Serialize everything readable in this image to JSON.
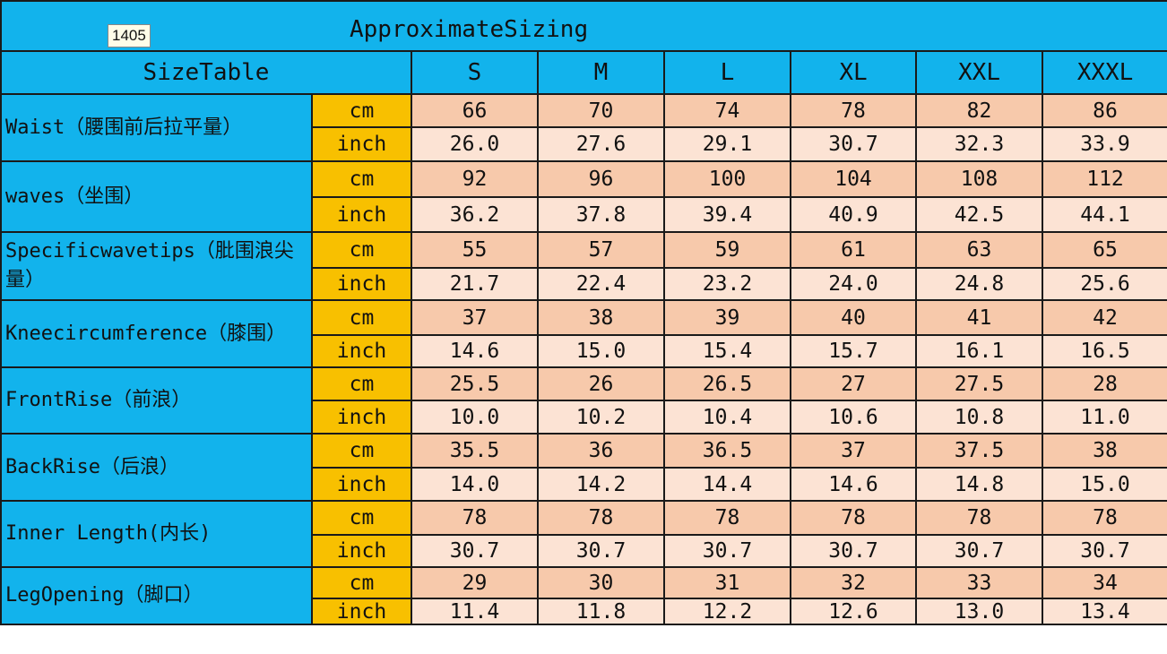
{
  "badge": "1405",
  "title": "ApproximateSizing",
  "header": {
    "first": "SizeTable",
    "sizes": [
      "S",
      "M",
      "L",
      "XL",
      "XXL",
      "XXXL"
    ]
  },
  "colors": {
    "header_blue": "#12b3ec",
    "unit_yellow": "#f8c000",
    "cm_row": "#f7c9ab",
    "inch_row": "#fce3d4"
  },
  "units": {
    "cm": "cm",
    "inch": "inch"
  },
  "rows": [
    {
      "label": "Waist（腰围前后拉平量）",
      "cm": [
        "66",
        "70",
        "74",
        "78",
        "82",
        "86"
      ],
      "inch": [
        "26.0",
        "27.6",
        "29.1",
        "30.7",
        "32.3",
        "33.9"
      ]
    },
    {
      "label": "waves（坐围）",
      "cm": [
        "92",
        "96",
        "100",
        "104",
        "108",
        "112"
      ],
      "inch": [
        "36.2",
        "37.8",
        "39.4",
        "40.9",
        "42.5",
        "44.1"
      ]
    },
    {
      "label": "Specificwavetips（肶围浪尖量）",
      "cm": [
        "55",
        "57",
        "59",
        "61",
        "63",
        "65"
      ],
      "inch": [
        "21.7",
        "22.4",
        "23.2",
        "24.0",
        "24.8",
        "25.6"
      ]
    },
    {
      "label": "Kneecircumference（膝围）",
      "cm": [
        "37",
        "38",
        "39",
        "40",
        "41",
        "42"
      ],
      "inch": [
        "14.6",
        "15.0",
        "15.4",
        "15.7",
        "16.1",
        "16.5"
      ]
    },
    {
      "label": "FrontRise（前浪）",
      "cm": [
        "25.5",
        "26",
        "26.5",
        "27",
        "27.5",
        "28"
      ],
      "inch": [
        "10.0",
        "10.2",
        "10.4",
        "10.6",
        "10.8",
        "11.0"
      ]
    },
    {
      "label": "BackRise（后浪）",
      "cm": [
        "35.5",
        "36",
        "36.5",
        "37",
        "37.5",
        "38"
      ],
      "inch": [
        "14.0",
        "14.2",
        "14.4",
        "14.6",
        "14.8",
        "15.0"
      ]
    },
    {
      "label": "Inner Length(内长)",
      "cm": [
        "78",
        "78",
        "78",
        "78",
        "78",
        "78"
      ],
      "inch": [
        "30.7",
        "30.7",
        "30.7",
        "30.7",
        "30.7",
        "30.7"
      ]
    },
    {
      "label": "LegOpening（脚口）",
      "cm": [
        "29",
        "30",
        "31",
        "32",
        "33",
        "34"
      ],
      "inch": [
        "11.4",
        "11.8",
        "12.2",
        "12.6",
        "13.0",
        "13.4"
      ]
    }
  ]
}
